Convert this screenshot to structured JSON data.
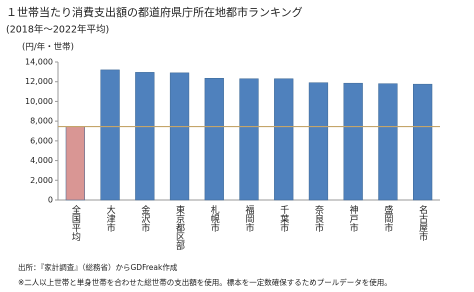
{
  "chart_data": {
    "type": "bar",
    "title": "１世帯当たり消費支出額の都道府県庁所在地都市ランキング",
    "subtitle": "(2018年～2022年平均)",
    "y_axis_label": "(円/年・世帯)",
    "categories": [
      "全国平均",
      "大津市",
      "金沢市",
      "東京都区部",
      "札幌市",
      "福岡市",
      "千葉市",
      "奈良市",
      "神戸市",
      "盛岡市",
      "名古屋市"
    ],
    "values": [
      7450,
      13200,
      12950,
      12900,
      12350,
      12300,
      12300,
      11900,
      11850,
      11800,
      11750
    ],
    "colors": [
      "#d99694",
      "#4f81bd",
      "#4f81bd",
      "#4f81bd",
      "#4f81bd",
      "#4f81bd",
      "#4f81bd",
      "#4f81bd",
      "#4f81bd",
      "#4f81bd",
      "#4f81bd"
    ],
    "ylim": [
      0,
      14000
    ],
    "yticks": [
      0,
      {
        "value": 2000,
        "label": "2,000"
      },
      {
        "value": 4000,
        "label": "4,000"
      },
      {
        "value": 6000,
        "label": "6,000"
      },
      {
        "value": 8000,
        "label": "8,000"
      },
      {
        "value": 10000,
        "label": "10,000"
      },
      {
        "value": 12000,
        "label": "12,000"
      },
      {
        "value": 14000,
        "label": "14,000"
      }
    ],
    "grid": false,
    "average_line": true,
    "average_line_color": "#c4a56a",
    "source": "出所：『家計調査』（総務省）からGDFreak作成",
    "note": "※二人以上世帯と単身世帯を合わせた総世帯の支出額を使用。標本を一定数確保するためプールデータを使用。"
  }
}
